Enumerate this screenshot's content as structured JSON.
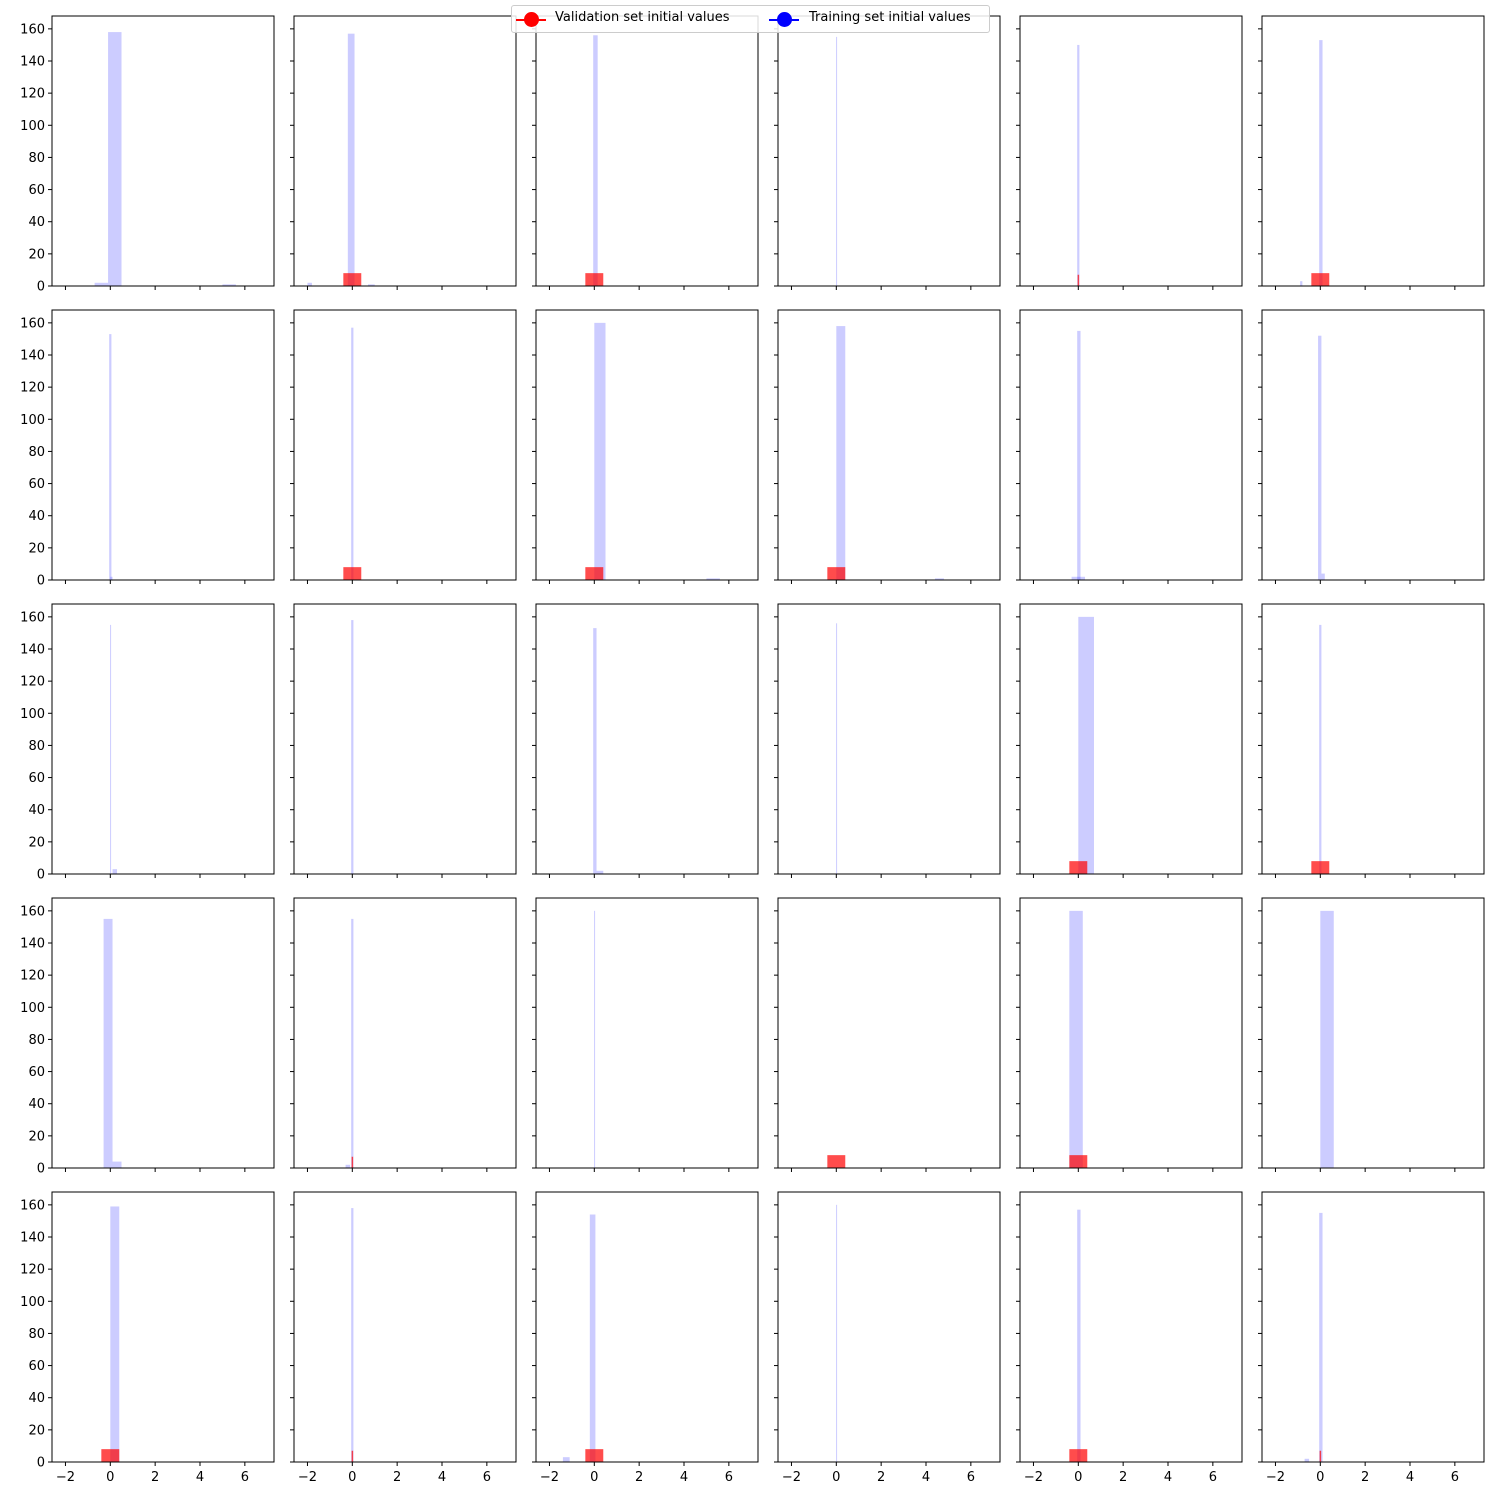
{
  "legend": {
    "placement": "top-center",
    "entries": [
      {
        "label": "Validation set initial values",
        "color": "#ff0000",
        "marker": "circle"
      },
      {
        "label": "Training set initial values",
        "color": "#0000ff",
        "marker": "circle"
      }
    ]
  },
  "colors": {
    "training": "#0000ff",
    "validation": "#ff0000"
  },
  "chart_data": {
    "type": "histogram-grid",
    "rows": 5,
    "cols": 6,
    "sharex": true,
    "sharey": true,
    "xlim": [
      -2.6,
      7.3
    ],
    "ylim": [
      0,
      168
    ],
    "xticks": [
      -2,
      0,
      2,
      4,
      6
    ],
    "yticks": [
      0,
      20,
      40,
      60,
      80,
      100,
      120,
      140,
      160
    ],
    "series": [
      "Training set initial values",
      "Validation set initial values"
    ],
    "panels": [
      {
        "training": [
          [
            -0.7,
            -0.1,
            2
          ],
          [
            -0.1,
            0.5,
            158
          ],
          [
            5.0,
            5.6,
            1
          ]
        ],
        "validation": []
      },
      {
        "training": [
          [
            -2.0,
            -1.8,
            2
          ],
          [
            -0.2,
            0.1,
            157
          ],
          [
            0.7,
            1.0,
            1
          ]
        ],
        "validation": [
          [
            -0.4,
            0.4,
            8
          ]
        ]
      },
      {
        "training": [
          [
            -0.05,
            0.15,
            156
          ]
        ],
        "validation": [
          [
            -0.4,
            0.4,
            8
          ]
        ]
      },
      {
        "training": [
          [
            -0.01,
            0.01,
            155
          ]
        ],
        "validation": []
      },
      {
        "training": [
          [
            -0.05,
            0.05,
            150
          ]
        ],
        "validation": [
          [
            -0.03,
            0.03,
            7
          ]
        ]
      },
      {
        "training": [
          [
            -0.9,
            -0.8,
            3
          ],
          [
            -0.05,
            0.1,
            153
          ]
        ],
        "validation": [
          [
            -0.4,
            0.4,
            8
          ]
        ]
      },
      {
        "training": [
          [
            -0.05,
            0.05,
            153
          ],
          [
            0.0,
            0.1,
            2
          ]
        ],
        "validation": []
      },
      {
        "training": [
          [
            -0.05,
            0.05,
            157
          ]
        ],
        "validation": [
          [
            -0.4,
            0.4,
            8
          ]
        ]
      },
      {
        "training": [
          [
            0.0,
            0.5,
            160
          ],
          [
            5.0,
            5.6,
            1
          ]
        ],
        "validation": [
          [
            -0.4,
            0.4,
            8
          ]
        ]
      },
      {
        "training": [
          [
            0.0,
            0.4,
            158
          ],
          [
            4.4,
            4.8,
            1
          ]
        ],
        "validation": [
          [
            -0.4,
            0.4,
            8
          ]
        ]
      },
      {
        "training": [
          [
            -0.05,
            0.1,
            155
          ],
          [
            -0.3,
            0.3,
            2
          ]
        ],
        "validation": []
      },
      {
        "training": [
          [
            -0.1,
            0.05,
            152
          ],
          [
            0.05,
            0.2,
            4
          ]
        ],
        "validation": []
      },
      {
        "training": [
          [
            -0.01,
            0.02,
            155
          ],
          [
            0.1,
            0.3,
            3
          ]
        ],
        "validation": []
      },
      {
        "training": [
          [
            -0.05,
            0.05,
            158
          ]
        ],
        "validation": []
      },
      {
        "training": [
          [
            -0.05,
            0.1,
            153
          ],
          [
            0.1,
            0.4,
            2
          ]
        ],
        "validation": []
      },
      {
        "training": [
          [
            -0.01,
            0.02,
            156
          ]
        ],
        "validation": []
      },
      {
        "training": [
          [
            0.0,
            0.7,
            160
          ]
        ],
        "validation": [
          [
            -0.4,
            0.4,
            8
          ]
        ]
      },
      {
        "training": [
          [
            -0.05,
            0.05,
            155
          ]
        ],
        "validation": [
          [
            -0.4,
            0.4,
            8
          ]
        ]
      },
      {
        "training": [
          [
            -0.3,
            0.1,
            155
          ],
          [
            0.1,
            0.5,
            4
          ]
        ],
        "validation": []
      },
      {
        "training": [
          [
            -0.05,
            0.05,
            155
          ],
          [
            -0.3,
            -0.1,
            2
          ]
        ],
        "validation": [
          [
            -0.03,
            0.03,
            7
          ]
        ]
      },
      {
        "training": [
          [
            -0.01,
            0.02,
            160
          ]
        ],
        "validation": []
      },
      {
        "training": [],
        "validation": [
          [
            -0.4,
            0.4,
            8
          ]
        ]
      },
      {
        "training": [
          [
            -0.4,
            0.2,
            160
          ]
        ],
        "validation": [
          [
            -0.4,
            0.4,
            8
          ]
        ]
      },
      {
        "training": [
          [
            0.0,
            0.6,
            160
          ]
        ],
        "validation": []
      },
      {
        "training": [
          [
            0.0,
            0.4,
            159
          ]
        ],
        "validation": [
          [
            -0.4,
            0.4,
            8
          ]
        ]
      },
      {
        "training": [
          [
            -0.05,
            0.05,
            158
          ]
        ],
        "validation": [
          [
            -0.03,
            0.03,
            7
          ]
        ]
      },
      {
        "training": [
          [
            -1.4,
            -1.1,
            3
          ],
          [
            -0.2,
            0.05,
            154
          ]
        ],
        "validation": [
          [
            -0.4,
            0.4,
            8
          ]
        ]
      },
      {
        "training": [
          [
            -0.01,
            0.02,
            160
          ]
        ],
        "validation": []
      },
      {
        "training": [
          [
            -0.05,
            0.1,
            157
          ]
        ],
        "validation": [
          [
            -0.4,
            0.4,
            8
          ]
        ]
      },
      {
        "training": [
          [
            -0.7,
            -0.5,
            2
          ],
          [
            -0.05,
            0.1,
            155
          ]
        ],
        "validation": [
          [
            -0.03,
            0.03,
            7
          ]
        ]
      }
    ]
  }
}
